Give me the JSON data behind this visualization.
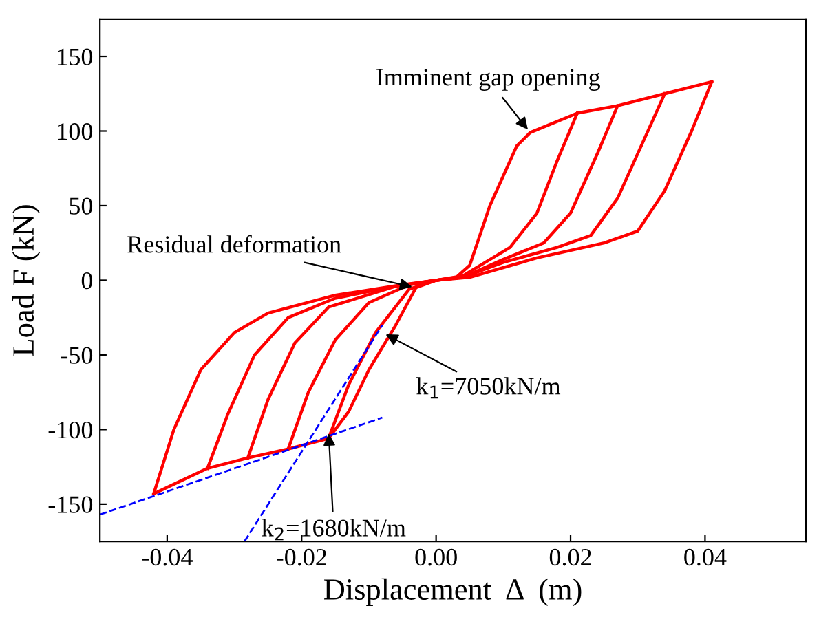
{
  "chart_data": {
    "type": "line",
    "xlabel": "Displacement  Δ  (m)",
    "ylabel": "Load F (kN)",
    "xlim": [
      -0.05,
      0.055
    ],
    "ylim": [
      -175,
      175
    ],
    "xticks": [
      {
        "value": -0.04,
        "label": "-0.04"
      },
      {
        "value": -0.02,
        "label": "-0.02"
      },
      {
        "value": 0,
        "label": "0.00"
      },
      {
        "value": 0.02,
        "label": "0.02"
      },
      {
        "value": 0.04,
        "label": "0.04"
      }
    ],
    "yticks": [
      -150,
      -100,
      -50,
      0,
      50,
      100,
      150
    ],
    "grid": false,
    "legend": false,
    "series": [
      {
        "color": "#ff0000",
        "line_style": "solid",
        "x": [
          -0.042,
          -0.034,
          -0.028,
          -0.022,
          -0.016,
          -0.013,
          -0.01,
          -0.006,
          -0.003,
          0,
          0.003,
          0.005,
          0.008,
          0.012,
          0.014,
          0.021,
          0.027,
          0.034,
          0.041
        ],
        "values": [
          -143,
          -126,
          -119,
          -113,
          -106,
          -88,
          -60,
          -30,
          -5,
          0,
          2,
          10,
          50,
          90,
          99,
          112,
          117,
          125,
          133
        ]
      },
      {
        "color": "#ff0000",
        "line_style": "solid",
        "x": [
          0.021,
          0.018,
          0.015,
          0.011,
          0.004,
          0,
          -0.004,
          -0.009,
          -0.013,
          -0.016
        ],
        "values": [
          112,
          80,
          45,
          22,
          3,
          0,
          -6,
          -35,
          -70,
          -106
        ]
      },
      {
        "color": "#ff0000",
        "line_style": "solid",
        "x": [
          0.027,
          0.024,
          0.02,
          0.016,
          0.01,
          0.004,
          0,
          -0.004,
          -0.01,
          -0.015,
          -0.019,
          -0.022
        ],
        "values": [
          117,
          85,
          45,
          25,
          14,
          2,
          0,
          -3,
          -15,
          -40,
          -75,
          -113
        ]
      },
      {
        "color": "#ff0000",
        "line_style": "solid",
        "x": [
          0.034,
          0.031,
          0.027,
          0.023,
          0.018,
          0.01,
          0.004,
          0,
          -0.006,
          -0.016,
          -0.021,
          -0.025,
          -0.028
        ],
        "values": [
          125,
          95,
          55,
          30,
          22,
          12,
          2,
          0,
          -4,
          -18,
          -42,
          -80,
          -119
        ]
      },
      {
        "color": "#ff0000",
        "line_style": "solid",
        "x": [
          0.041,
          0.038,
          0.034,
          0.03,
          0.025,
          0.015,
          0.005,
          0,
          -0.006,
          -0.015,
          -0.022,
          -0.027,
          -0.031,
          -0.034
        ],
        "values": [
          133,
          100,
          60,
          33,
          25,
          15,
          2,
          0,
          -4,
          -12,
          -25,
          -50,
          -90,
          -126
        ]
      },
      {
        "color": "#ff0000",
        "line_style": "solid",
        "x": [
          -0.042,
          -0.039,
          -0.035,
          -0.03,
          -0.025,
          -0.015,
          -0.005,
          0
        ],
        "values": [
          -143,
          -100,
          -60,
          -35,
          -22,
          -10,
          -3,
          0
        ]
      },
      {
        "color": "#0000ff",
        "line_style": "dashed",
        "x": [
          -0.0285,
          -0.008
        ],
        "values": [
          -175,
          -30
        ]
      },
      {
        "color": "#0000ff",
        "line_style": "dashed",
        "x": [
          -0.05,
          -0.008
        ],
        "values": [
          -157,
          -92
        ]
      }
    ],
    "annotations": [
      {
        "text": "Imminent gap opening",
        "x": 0.014,
        "y": 99
      },
      {
        "text": "Residual deformation",
        "x": -0.003,
        "y": -5
      },
      {
        "text": "k$_{1}$=7050kN/m",
        "x": -0.008,
        "y": -35
      },
      {
        "text": "k$_{2}$=1680kN/m",
        "x": -0.016,
        "y": -100
      }
    ]
  }
}
